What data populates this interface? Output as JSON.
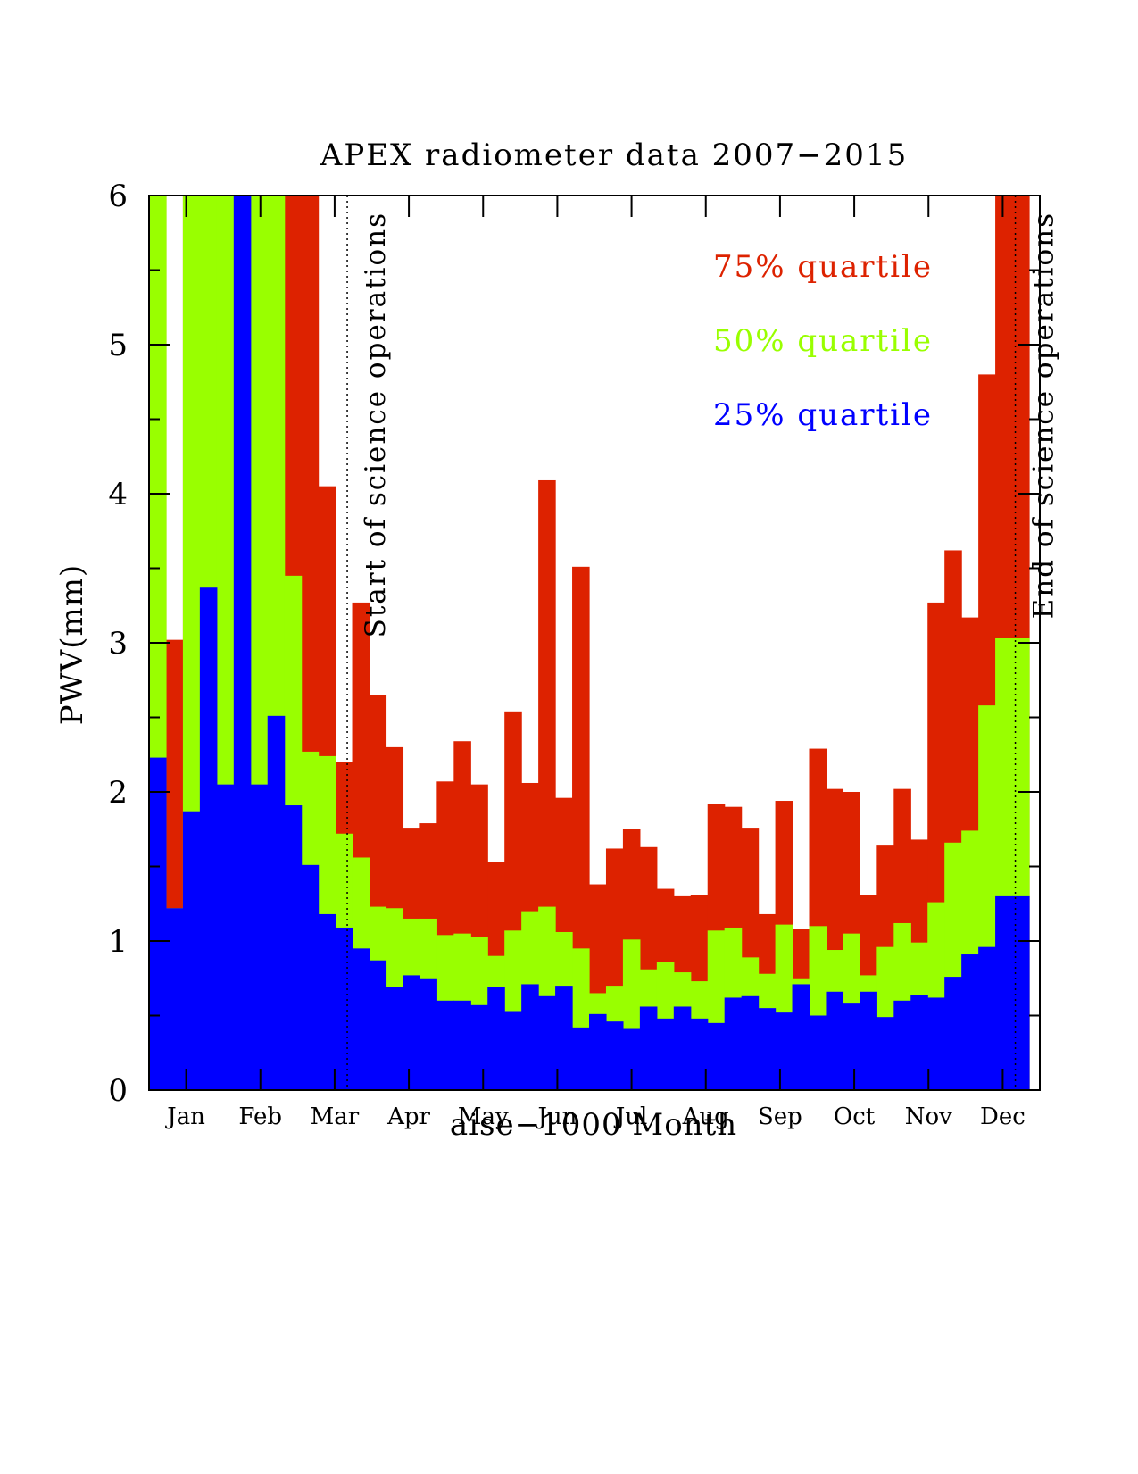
{
  "chart_data": {
    "type": "bar",
    "title": "APEX radiometer data 2007−2015",
    "xlabel": "aise−1000 Month",
    "ylabel": "PWV(mm)",
    "ylim": [
      0,
      6
    ],
    "xlim": [
      0.5,
      12.5
    ],
    "x_ticks": [
      {
        "value": 1,
        "label": "Jan"
      },
      {
        "value": 2,
        "label": "Feb"
      },
      {
        "value": 3,
        "label": "Mar"
      },
      {
        "value": 4,
        "label": "Apr"
      },
      {
        "value": 5,
        "label": "May"
      },
      {
        "value": 6,
        "label": "Jun"
      },
      {
        "value": 7,
        "label": "Jul"
      },
      {
        "value": 8,
        "label": "Aug"
      },
      {
        "value": 9,
        "label": "Sep"
      },
      {
        "value": 10,
        "label": "Oct"
      },
      {
        "value": 11,
        "label": "Nov"
      },
      {
        "value": 12,
        "label": "Dec"
      }
    ],
    "y_ticks": [
      {
        "value": 0,
        "label": "0"
      },
      {
        "value": 1,
        "label": "1"
      },
      {
        "value": 2,
        "label": "2"
      },
      {
        "value": 3,
        "label": "3"
      },
      {
        "value": 4,
        "label": "4"
      },
      {
        "value": 5,
        "label": "5"
      },
      {
        "value": 6,
        "label": "6"
      }
    ],
    "bin_count": 52,
    "series": [
      {
        "name": "75% quartile",
        "color": "#dd2200",
        "values": [
          6,
          3.02,
          6,
          6,
          6,
          6,
          6,
          6,
          6,
          6.0,
          4.05,
          2.2,
          3.27,
          2.65,
          2.3,
          1.76,
          1.79,
          2.07,
          2.34,
          2.05,
          1.53,
          2.54,
          2.06,
          4.09,
          1.96,
          3.51,
          1.38,
          1.62,
          1.75,
          1.63,
          1.35,
          1.3,
          1.31,
          1.92,
          1.9,
          1.76,
          1.18,
          1.94,
          1.08,
          2.29,
          2.02,
          2.0,
          1.31,
          1.64,
          2.02,
          1.68,
          3.27,
          3.62,
          3.17,
          4.8,
          6,
          6
        ]
      },
      {
        "name": "50% quartile",
        "color": "#99ff00",
        "values": [
          6,
          1.22,
          6,
          6,
          6,
          6,
          6,
          6,
          3.45,
          2.27,
          2.24,
          1.72,
          1.56,
          1.23,
          1.22,
          1.15,
          1.15,
          1.04,
          1.05,
          1.03,
          0.9,
          1.07,
          1.2,
          1.23,
          1.06,
          0.95,
          0.65,
          0.7,
          1.01,
          0.81,
          0.86,
          0.79,
          0.73,
          1.07,
          1.09,
          0.89,
          0.78,
          1.11,
          0.75,
          1.1,
          0.94,
          1.05,
          0.77,
          0.96,
          1.12,
          0.99,
          1.26,
          1.66,
          1.74,
          2.58,
          3.03,
          3.03
        ]
      },
      {
        "name": "25% quartile",
        "color": "#0000ff",
        "values": [
          2.23,
          1.22,
          1.87,
          3.37,
          2.05,
          6.0,
          2.05,
          2.51,
          1.91,
          1.51,
          1.18,
          1.09,
          0.95,
          0.87,
          0.69,
          0.77,
          0.75,
          0.6,
          0.6,
          0.57,
          0.69,
          0.53,
          0.71,
          0.63,
          0.7,
          0.42,
          0.51,
          0.46,
          0.41,
          0.56,
          0.48,
          0.56,
          0.48,
          0.45,
          0.62,
          0.63,
          0.55,
          0.52,
          0.71,
          0.5,
          0.66,
          0.58,
          0.66,
          0.49,
          0.6,
          0.64,
          0.62,
          0.76,
          0.91,
          0.96,
          1.3,
          1.3
        ]
      }
    ],
    "annotations": [
      {
        "text": "Start of science operations",
        "x": 3.17,
        "orientation": "vertical"
      },
      {
        "text": "End of science operations",
        "x": 12.17,
        "orientation": "vertical"
      }
    ],
    "legend": {
      "placement": "top-right",
      "entries": [
        {
          "label": "75% quartile",
          "color": "#dd2200"
        },
        {
          "label": "50% quartile",
          "color": "#99ff00"
        },
        {
          "label": "25% quartile",
          "color": "#0000ff"
        }
      ]
    },
    "grid": false
  }
}
